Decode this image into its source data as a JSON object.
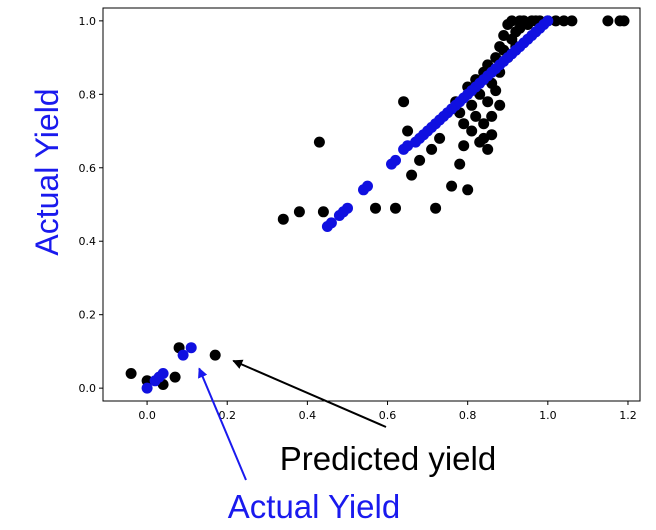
{
  "chart_data": {
    "type": "scatter",
    "ylabel": "Actual Yield",
    "xlim": [
      -0.11,
      1.23
    ],
    "ylim": [
      -0.035,
      1.035
    ],
    "x_ticks": [
      "0.0",
      "0.2",
      "0.4",
      "0.6",
      "0.8",
      "1.0",
      "1.2"
    ],
    "y_ticks": [
      "0.0",
      "0.2",
      "0.4",
      "0.6",
      "0.8",
      "1.0"
    ],
    "grid": false,
    "colors": {
      "black_series": "#000000",
      "blue_series": "#1010e0",
      "ylabel": "#1a1aee",
      "actual_annotation": "#1a1aee"
    },
    "series": [
      {
        "color": "black",
        "points": [
          [
            -0.04,
            0.04
          ],
          [
            0.0,
            0.02
          ],
          [
            0.04,
            0.01
          ],
          [
            0.07,
            0.03
          ],
          [
            0.08,
            0.11
          ],
          [
            0.17,
            0.09
          ],
          [
            0.34,
            0.46
          ],
          [
            0.38,
            0.48
          ],
          [
            0.43,
            0.67
          ],
          [
            0.44,
            0.48
          ],
          [
            0.57,
            0.49
          ],
          [
            0.62,
            0.49
          ],
          [
            0.64,
            0.78
          ],
          [
            0.65,
            0.7
          ],
          [
            0.66,
            0.58
          ],
          [
            0.68,
            0.62
          ],
          [
            0.71,
            0.65
          ],
          [
            0.72,
            0.49
          ],
          [
            0.73,
            0.68
          ],
          [
            0.76,
            0.55
          ],
          [
            0.78,
            0.61
          ],
          [
            0.79,
            0.66
          ],
          [
            0.8,
            0.54
          ],
          [
            0.77,
            0.78
          ],
          [
            0.78,
            0.75
          ],
          [
            0.79,
            0.72
          ],
          [
            0.8,
            0.82
          ],
          [
            0.81,
            0.77
          ],
          [
            0.81,
            0.7
          ],
          [
            0.82,
            0.84
          ],
          [
            0.82,
            0.74
          ],
          [
            0.83,
            0.67
          ],
          [
            0.83,
            0.8
          ],
          [
            0.84,
            0.86
          ],
          [
            0.84,
            0.72
          ],
          [
            0.84,
            0.68
          ],
          [
            0.85,
            0.65
          ],
          [
            0.85,
            0.78
          ],
          [
            0.85,
            0.88
          ],
          [
            0.86,
            0.83
          ],
          [
            0.86,
            0.74
          ],
          [
            0.86,
            0.69
          ],
          [
            0.87,
            0.9
          ],
          [
            0.87,
            0.81
          ],
          [
            0.88,
            0.86
          ],
          [
            0.88,
            0.93
          ],
          [
            0.88,
            0.77
          ],
          [
            0.89,
            0.92
          ],
          [
            0.89,
            0.96
          ],
          [
            0.9,
            0.9
          ],
          [
            0.9,
            0.99
          ],
          [
            0.91,
            0.95
          ],
          [
            0.91,
            1.0
          ],
          [
            0.92,
            0.97
          ],
          [
            0.92,
            0.93
          ],
          [
            0.93,
            1.0
          ],
          [
            0.93,
            0.98
          ],
          [
            0.94,
            1.0
          ],
          [
            0.95,
            0.99
          ],
          [
            0.96,
            1.0
          ],
          [
            0.97,
            1.0
          ],
          [
            0.98,
            1.0
          ],
          [
            1.0,
            1.0
          ],
          [
            1.02,
            1.0
          ],
          [
            1.04,
            1.0
          ],
          [
            1.06,
            1.0
          ],
          [
            1.15,
            1.0
          ],
          [
            1.18,
            1.0
          ],
          [
            1.19,
            1.0
          ]
        ]
      },
      {
        "color": "blue",
        "points": [
          [
            0.0,
            0.0
          ],
          [
            0.02,
            0.02
          ],
          [
            0.03,
            0.03
          ],
          [
            0.04,
            0.04
          ],
          [
            0.09,
            0.09
          ],
          [
            0.11,
            0.11
          ],
          [
            0.45,
            0.44
          ],
          [
            0.46,
            0.45
          ],
          [
            0.48,
            0.47
          ],
          [
            0.49,
            0.48
          ],
          [
            0.5,
            0.49
          ],
          [
            0.54,
            0.54
          ],
          [
            0.55,
            0.55
          ],
          [
            0.61,
            0.61
          ],
          [
            0.62,
            0.62
          ],
          [
            0.64,
            0.65
          ],
          [
            0.65,
            0.66
          ],
          [
            0.67,
            0.67
          ],
          [
            0.68,
            0.68
          ],
          [
            0.69,
            0.69
          ],
          [
            0.7,
            0.7
          ],
          [
            0.71,
            0.71
          ],
          [
            0.72,
            0.72
          ],
          [
            0.73,
            0.73
          ],
          [
            0.74,
            0.74
          ],
          [
            0.75,
            0.75
          ],
          [
            0.76,
            0.76
          ],
          [
            0.77,
            0.77
          ],
          [
            0.78,
            0.78
          ],
          [
            0.79,
            0.79
          ],
          [
            0.8,
            0.8
          ],
          [
            0.81,
            0.81
          ],
          [
            0.82,
            0.82
          ],
          [
            0.83,
            0.83
          ],
          [
            0.84,
            0.84
          ],
          [
            0.85,
            0.85
          ],
          [
            0.86,
            0.86
          ],
          [
            0.87,
            0.87
          ],
          [
            0.88,
            0.88
          ],
          [
            0.89,
            0.89
          ],
          [
            0.9,
            0.9
          ],
          [
            0.91,
            0.91
          ],
          [
            0.92,
            0.92
          ],
          [
            0.93,
            0.93
          ],
          [
            0.94,
            0.94
          ],
          [
            0.95,
            0.95
          ],
          [
            0.96,
            0.96
          ],
          [
            0.97,
            0.97
          ],
          [
            0.98,
            0.98
          ],
          [
            0.99,
            0.99
          ],
          [
            1.0,
            1.0
          ]
        ]
      }
    ],
    "annotations": [
      {
        "text": "Predicted yield",
        "color": "#000000",
        "points_to": [
          0.2,
          0.08
        ]
      },
      {
        "text": "Actual Yield",
        "color": "#1a1aee",
        "points_to": [
          0.12,
          0.07
        ]
      }
    ]
  }
}
